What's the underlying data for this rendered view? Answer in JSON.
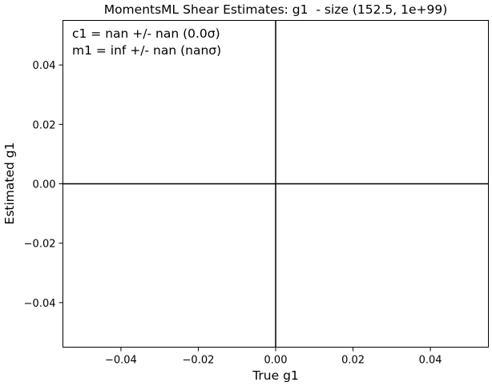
{
  "chart_data": {
    "type": "line",
    "title": "MomentsML Shear Estimates: g1  - size (152.5, 1e+99)",
    "x_label": "True g1",
    "y_label": "Estimated g1",
    "xlim": [
      -0.055,
      0.055
    ],
    "ylim": [
      -0.055,
      0.055
    ],
    "xticks": [
      {
        "value": -0.04,
        "label": "−0.04"
      },
      {
        "value": -0.02,
        "label": "−0.02"
      },
      {
        "value": 0,
        "label": "0.00"
      },
      0.02,
      0.04
    ],
    "yticks": [
      {
        "value": -0.04,
        "label": "−0.04"
      },
      {
        "value": -0.02,
        "label": "−0.02"
      },
      {
        "value": 0,
        "label": "0.00"
      },
      0.02,
      0.04
    ],
    "hlines": [
      0
    ],
    "vlines": [
      0
    ],
    "line_color": "#000000",
    "annotations": [
      "c1 = nan +/- nan (0.0σ)",
      "m1 = inf +/- nan (nanσ)"
    ]
  }
}
